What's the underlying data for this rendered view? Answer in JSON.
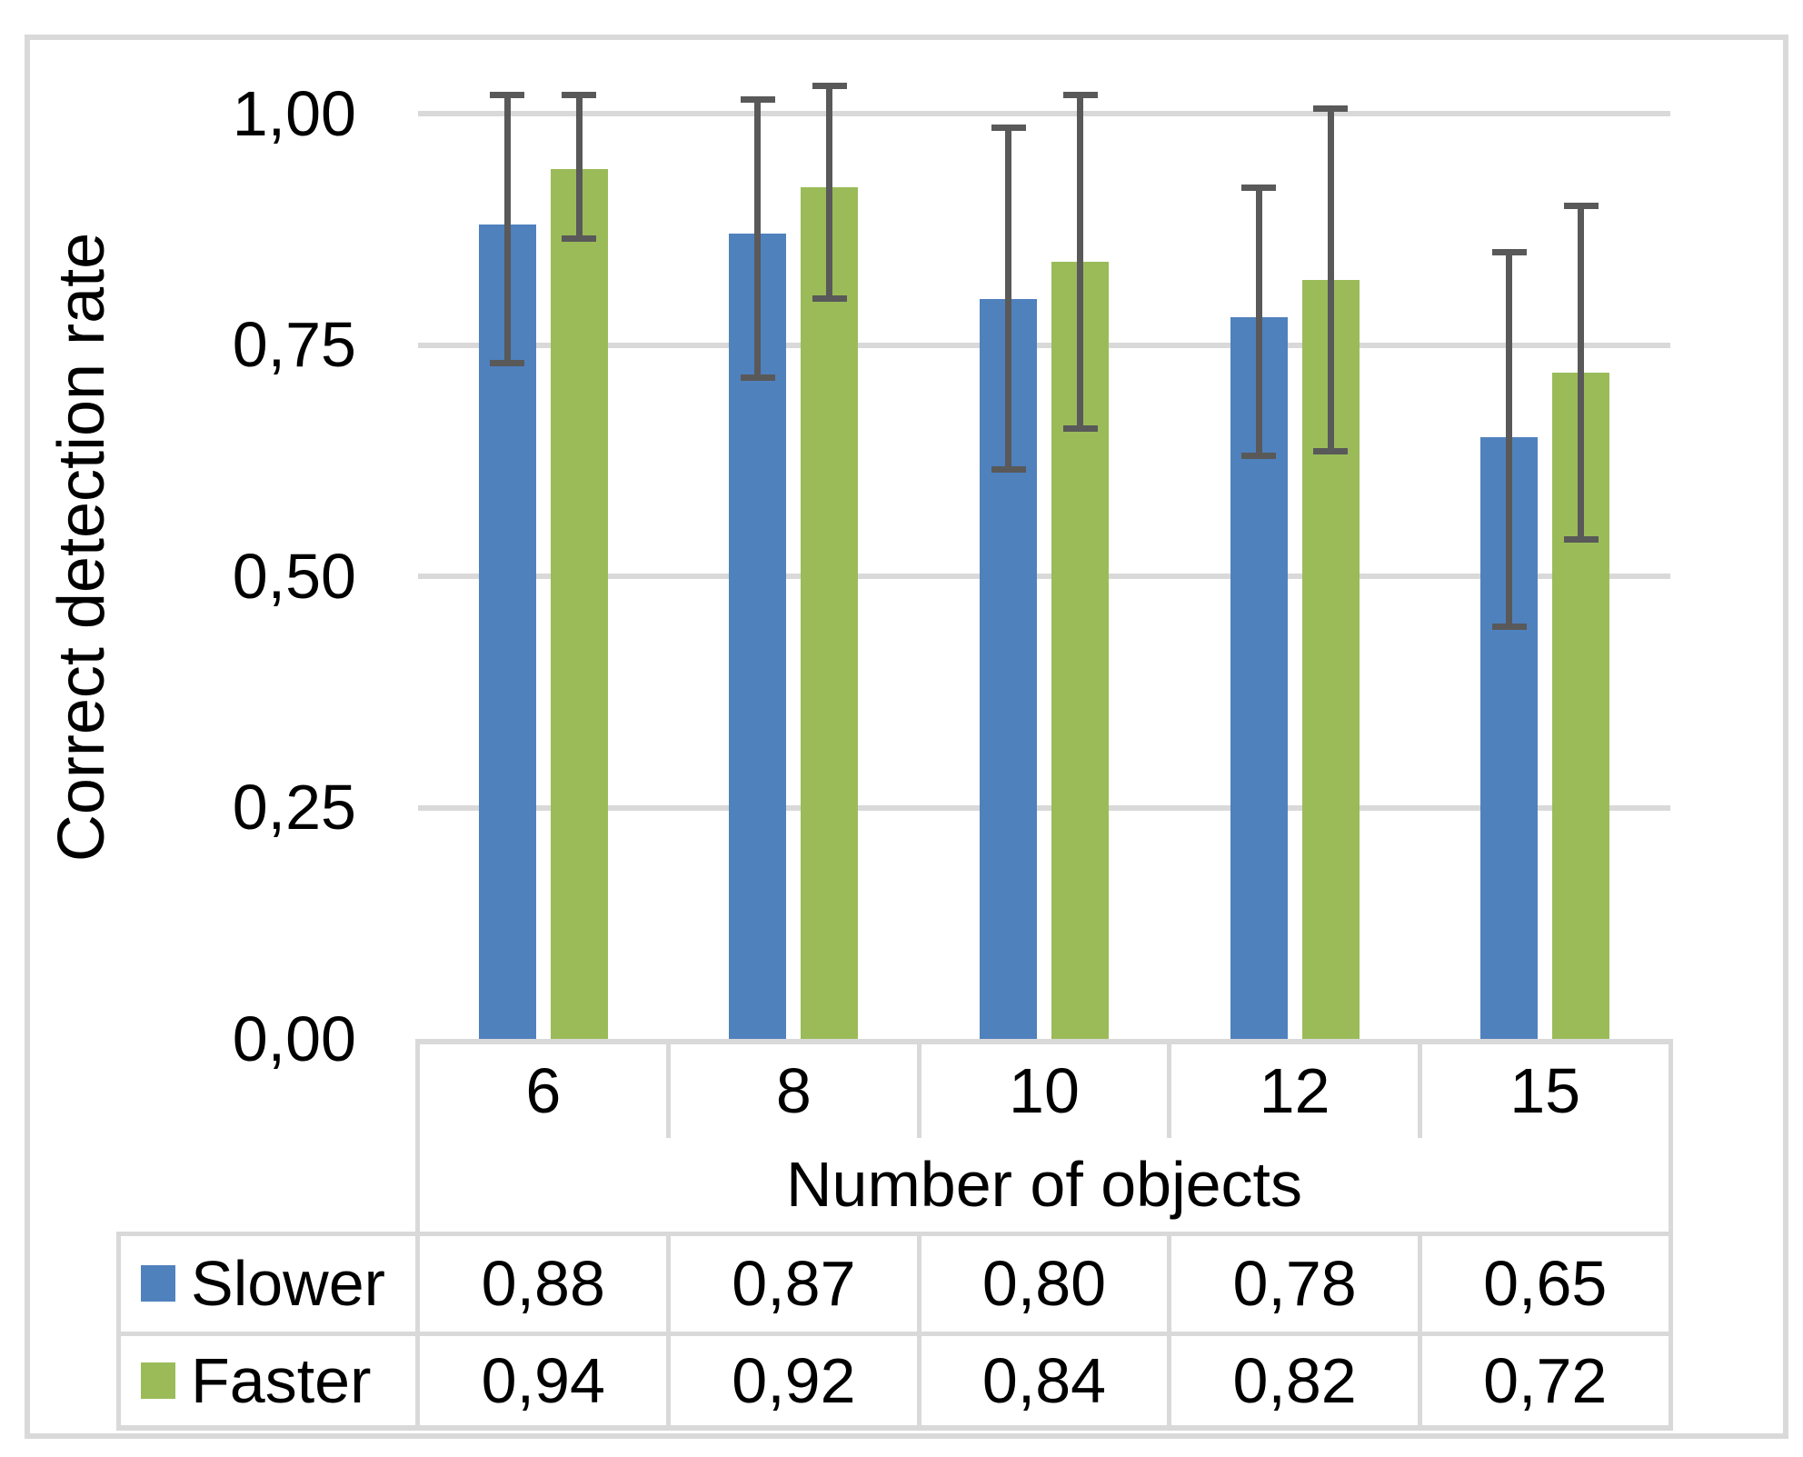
{
  "figure": {
    "background_color": "#FFFFFF",
    "border_color": "#D9D9D9"
  },
  "chart_data": {
    "type": "bar",
    "title": "",
    "xlabel": "Number of objects",
    "ylabel": "Correct detection rate",
    "categories": [
      "6",
      "8",
      "10",
      "12",
      "15"
    ],
    "y_axis": {
      "tick_labels": [
        "1,00",
        "0,75",
        "0,50",
        "0,25",
        "0,00"
      ],
      "tick_values": [
        1.0,
        0.75,
        0.5,
        0.25,
        0.0
      ],
      "ylim": [
        0,
        1.05
      ],
      "gridlines": true,
      "gridline_color": "#D9D9D9",
      "decimal_separator": ","
    },
    "legend_position": "table-left",
    "error_bar_color": "#595959",
    "series": [
      {
        "name": "Slower",
        "color": "#4F81BD",
        "values": [
          0.88,
          0.87,
          0.8,
          0.78,
          0.65
        ],
        "display_values": [
          "0,88",
          "0,87",
          "0,80",
          "0,78",
          "0,65"
        ],
        "error_low": [
          0.73,
          0.715,
          0.615,
          0.63,
          0.445
        ],
        "error_high": [
          1.02,
          1.015,
          0.985,
          0.92,
          0.85
        ]
      },
      {
        "name": "Faster",
        "color": "#9BBB59",
        "values": [
          0.94,
          0.92,
          0.84,
          0.82,
          0.72
        ],
        "display_values": [
          "0,94",
          "0,92",
          "0,84",
          "0,82",
          "0,72"
        ],
        "error_low": [
          0.865,
          0.8,
          0.66,
          0.635,
          0.54
        ],
        "error_high": [
          1.02,
          1.03,
          1.02,
          1.005,
          0.9
        ]
      }
    ]
  }
}
